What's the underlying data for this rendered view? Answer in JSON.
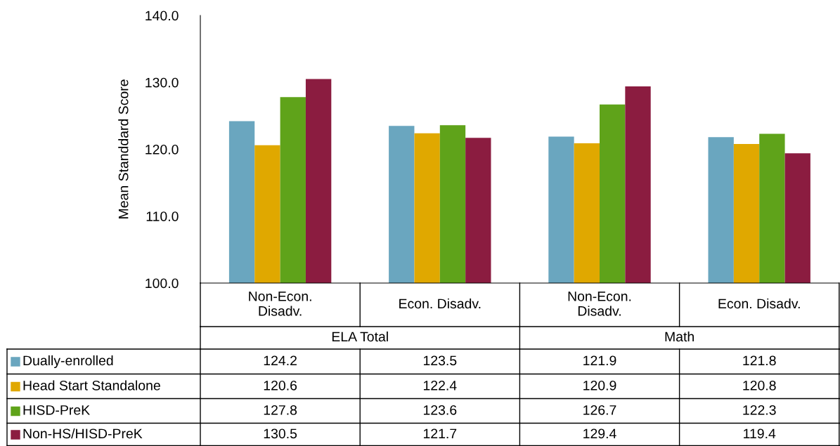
{
  "chart_data": {
    "type": "bar",
    "ylabel": "Mean Standdard Score",
    "categories": [
      "Non-Econ.\nDisadv.",
      "Econ. Disadv.",
      "Non-Econ.\nDisadv.",
      "Econ. Disadv."
    ],
    "annotations": [
      "ELA Total",
      "Math"
    ],
    "series": [
      {
        "name": "Dually-enrolled",
        "color": "#6aa6bf",
        "values": [
          124.2,
          123.5,
          121.9,
          121.8
        ]
      },
      {
        "name": "Head Start Standalone",
        "color": "#e0a800",
        "values": [
          120.6,
          122.4,
          120.9,
          120.8
        ]
      },
      {
        "name": "HISD-PreK",
        "color": "#5fa31a",
        "values": [
          127.8,
          123.6,
          126.7,
          122.3
        ]
      },
      {
        "name": "Non-HS/HISD-PreK",
        "color": "#8b1c40",
        "values": [
          130.5,
          121.7,
          129.4,
          119.4
        ]
      }
    ],
    "ylim": [
      100,
      140
    ],
    "yticks": [
      {
        "value": 100,
        "label": "100.0"
      },
      {
        "value": 110,
        "label": "110.0"
      },
      {
        "value": 120,
        "label": "120.0"
      },
      {
        "value": 130,
        "label": "130.0"
      },
      {
        "value": 140,
        "label": "140.0"
      }
    ],
    "data_labels": true,
    "legend": "bottom",
    "grid": false
  }
}
